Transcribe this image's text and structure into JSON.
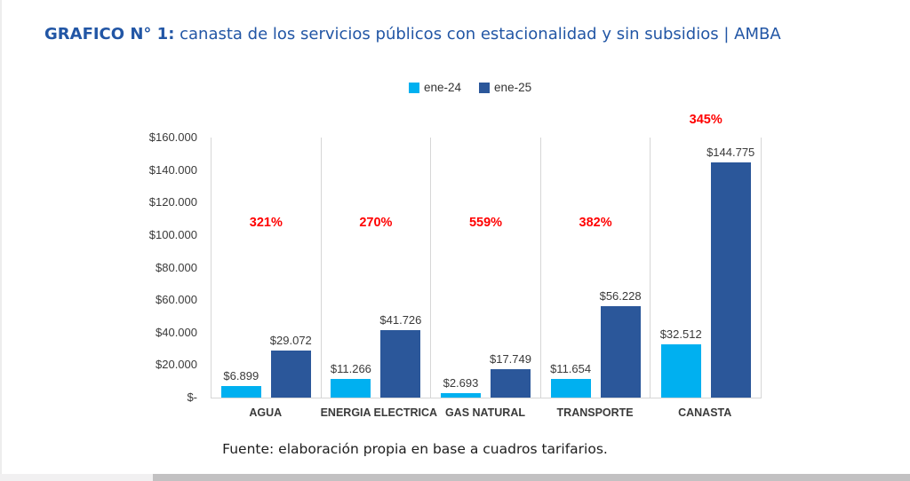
{
  "page": {
    "title_prefix": "GRAFICO N° 1:",
    "title_rest": "canasta de los servicios públicos con estacionalidad y sin subsidios | AMBA",
    "source_note": "Fuente: elaboración propia en base a cuadros tarifarios."
  },
  "colors": {
    "title_blue": "#2256A5",
    "ene24_blue": "#00B0F0",
    "ene25_blue": "#2B579A",
    "percent_red": "#FF0000",
    "axis_gray": "#D6D6D6",
    "scrollbar_track": "#F1F0F1",
    "scrollbar_thumb": "#C2C1C2"
  },
  "chart_data": {
    "type": "bar",
    "title": "canasta de los servicios públicos con estacionalidad y sin subsidios | AMBA",
    "categories": [
      "AGUA",
      "ENERGIA ELECTRICA",
      "GAS NATURAL",
      "TRANSPORTE",
      "CANASTA"
    ],
    "series": [
      {
        "name": "ene-24",
        "color": "#00B0F0",
        "values": [
          6899,
          11266,
          2693,
          11654,
          32512
        ],
        "labels": [
          "$6.899",
          "$11.266",
          "$2.693",
          "$11.654",
          "$32.512"
        ]
      },
      {
        "name": "ene-25",
        "color": "#2B579A",
        "values": [
          29072,
          41726,
          17749,
          56228,
          144775
        ],
        "labels": [
          "$29.072",
          "$41.726",
          "$17.749",
          "$56.228",
          "$144.775"
        ]
      }
    ],
    "pct_change_labels": [
      "321%",
      "270%",
      "559%",
      "382%",
      "345%"
    ],
    "y_ticks": [
      "$160.000",
      "$140.000",
      "$120.000",
      "$100.000",
      "$80.000",
      "$60.000",
      "$40.000",
      "$20.000",
      "$-"
    ],
    "ylim": [
      0,
      160000
    ],
    "grid": false,
    "legend_position": "top-center",
    "xlabel": "",
    "ylabel": ""
  }
}
